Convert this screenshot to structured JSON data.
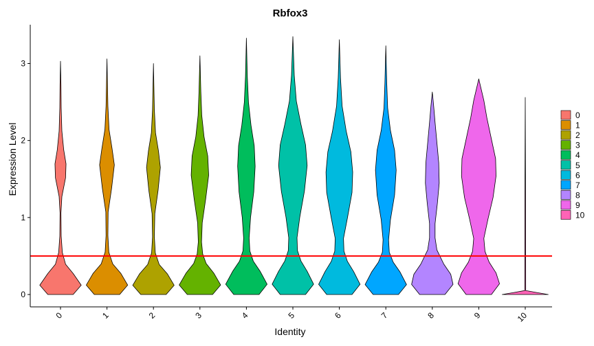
{
  "chart_data": {
    "type": "violin",
    "title": "Rbfox3",
    "xlabel": "Identity",
    "ylabel": "Expression Level",
    "ylim": [
      -0.17,
      3.5
    ],
    "y_ticks": [
      0,
      1,
      2,
      3
    ],
    "categories": [
      "0",
      "1",
      "2",
      "3",
      "4",
      "5",
      "6",
      "7",
      "8",
      "9",
      "10"
    ],
    "threshold_line": {
      "y": 0.5,
      "color": "#ff0000"
    },
    "legend_position": "right",
    "series": [
      {
        "name": "0",
        "color": "#F8766D",
        "max": 3.03
      },
      {
        "name": "1",
        "color": "#DB8E00",
        "max": 3.06
      },
      {
        "name": "2",
        "color": "#AEA200",
        "max": 3.0
      },
      {
        "name": "3",
        "color": "#64B200",
        "max": 3.1
      },
      {
        "name": "4",
        "color": "#00BD5C",
        "max": 3.33
      },
      {
        "name": "5",
        "color": "#00C1A7",
        "max": 3.35
      },
      {
        "name": "6",
        "color": "#00BADE",
        "max": 3.31
      },
      {
        "name": "7",
        "color": "#00A6FF",
        "max": 3.23
      },
      {
        "name": "8",
        "color": "#B385FF",
        "max": 2.63
      },
      {
        "name": "9",
        "color": "#EF67EB",
        "max": 2.8
      },
      {
        "name": "10",
        "color": "#FF63B6",
        "max": 2.56
      }
    ]
  }
}
